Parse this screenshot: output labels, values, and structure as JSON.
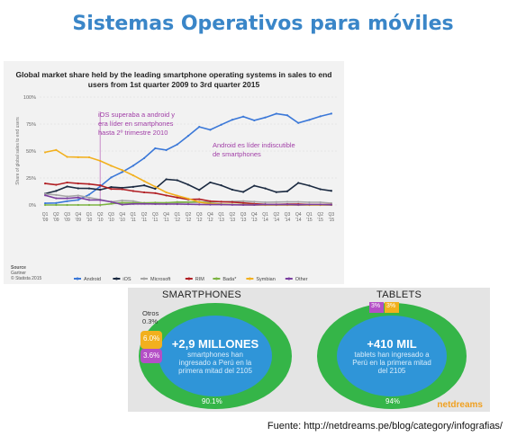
{
  "slide_title": "Sistemas Operativos para móviles",
  "chart_data": {
    "type": "line",
    "title": "Global market share held by the leading smartphone operating systems in sales to end users from 1st quarter 2009 to 3rd quarter 2015",
    "ylabel": "Share of global sales to end users",
    "ylim": [
      0,
      100
    ],
    "yticks": [
      "100%",
      "75%",
      "50%",
      "25%",
      "0%"
    ],
    "categories": [
      "Q1 '09",
      "Q2 '09",
      "Q3 '09",
      "Q4 '09",
      "Q1 '10",
      "Q2 '10",
      "Q3 '10",
      "Q4 '10",
      "Q1 '11",
      "Q2 '11",
      "Q3 '11",
      "Q4 '11",
      "Q1 '12",
      "Q2 '12",
      "Q3 '12",
      "Q4 '12",
      "Q1 '13",
      "Q2 '13",
      "Q3 '13",
      "Q4 '13",
      "Q1 '14",
      "Q2 '14",
      "Q3 '14",
      "Q4 '14",
      "Q1 '15",
      "Q2 '15",
      "Q3 '15"
    ],
    "series": [
      {
        "name": "Android",
        "color": "#3b78d8",
        "values": [
          1.6,
          1.8,
          3.5,
          4.7,
          9.6,
          17.2,
          25.5,
          30.5,
          36.4,
          43.4,
          52.5,
          50.9,
          56.1,
          64.1,
          72.4,
          69.7,
          74.4,
          79.0,
          81.9,
          78.4,
          81.1,
          84.6,
          83.1,
          76.0,
          78.9,
          82.2,
          84.7
        ]
      },
      {
        "name": "iOS",
        "color": "#1b2a41",
        "values": [
          10.5,
          13.0,
          17.1,
          15.4,
          15.3,
          14.1,
          16.6,
          15.9,
          16.8,
          18.2,
          15.0,
          23.8,
          22.9,
          18.8,
          13.9,
          20.9,
          18.2,
          14.2,
          12.1,
          17.8,
          15.3,
          11.9,
          12.7,
          20.4,
          17.9,
          14.6,
          13.1
        ]
      },
      {
        "name": "Microsoft",
        "color": "#a6a6a6",
        "values": [
          10.2,
          9.3,
          7.9,
          8.8,
          6.8,
          5.0,
          2.8,
          4.2,
          3.6,
          1.6,
          1.5,
          1.9,
          2.0,
          2.6,
          2.4,
          3.0,
          2.9,
          3.3,
          3.6,
          3.0,
          2.5,
          2.7,
          2.9,
          2.8,
          2.5,
          2.5,
          1.7
        ]
      },
      {
        "name": "RIM",
        "color": "#b11f24",
        "values": [
          19.9,
          18.7,
          20.8,
          19.9,
          19.4,
          18.2,
          14.8,
          14.6,
          12.9,
          11.7,
          11.0,
          8.8,
          6.9,
          5.2,
          5.3,
          3.5,
          3.0,
          2.7,
          1.9,
          1.1,
          0.6,
          0.5,
          0.8,
          0.8,
          0.3,
          0.3,
          0.3
        ]
      },
      {
        "name": "Bada*",
        "color": "#7cb342",
        "values": [
          0,
          0,
          0,
          0,
          0,
          0,
          1.1,
          2.2,
          1.9,
          1.9,
          2.2,
          2.1,
          2.7,
          2.7,
          3.0,
          1.7,
          0.8,
          0.5,
          0.4,
          0.2,
          0,
          0,
          0,
          0,
          0,
          0,
          0
        ]
      },
      {
        "name": "Symbian",
        "color": "#f2b01e",
        "values": [
          48.8,
          51.0,
          44.6,
          44.3,
          44.2,
          40.9,
          36.3,
          32.3,
          27.4,
          22.1,
          16.9,
          11.7,
          8.6,
          5.9,
          2.6,
          1.2,
          0.6,
          0.3,
          0.2,
          0.1,
          0,
          0,
          0,
          0,
          0,
          0,
          0
        ]
      },
      {
        "name": "Other",
        "color": "#7b3fa0",
        "values": [
          9.0,
          6.2,
          6.1,
          6.9,
          4.7,
          4.6,
          2.9,
          0.3,
          1.0,
          1.1,
          0.9,
          0.8,
          0.8,
          0.7,
          0.5,
          0.3,
          0.3,
          0.2,
          0.1,
          0.1,
          0.5,
          0.3,
          0.5,
          0.2,
          0.4,
          0.4,
          0.2
        ]
      }
    ],
    "legend": "bottom",
    "grid": true,
    "annotations": [
      "iOS superaba a android y era líder en smartphones hasta 2º trimestre 2010",
      "Android es líder indiscutible de smartphones"
    ],
    "source": [
      "Source",
      "Gartner",
      "© Statista 2015"
    ]
  },
  "infographic": {
    "smartphones": {
      "title": "SMARTPHONES",
      "headline": "+2,9 MILLONES",
      "body": "smartphones han ingresado a Perú en la primera mitad del 2105",
      "segments": [
        {
          "label": "Otros",
          "value": "0.3%",
          "color": "#9e9e9e"
        },
        {
          "label": "",
          "value": "6.0%",
          "color": "#f2b01e"
        },
        {
          "label": "",
          "value": "3.6%",
          "color": "#b44fc6"
        },
        {
          "label": "",
          "value": "90.1%",
          "color": "#35b548"
        }
      ]
    },
    "tablets": {
      "title": "TABLETS",
      "headline": "+410 MIL",
      "body": "tablets han ingresado a Perú en la primera mitad del 2105",
      "segments": [
        {
          "value": "3%",
          "color": "#b44fc6"
        },
        {
          "value": "3%",
          "color": "#f2b01e"
        },
        {
          "value": "94%",
          "color": "#35b548"
        }
      ]
    },
    "brand": "netdreams"
  },
  "source_line": "Fuente: http://netdreams.pe/blog/category/infografias/"
}
